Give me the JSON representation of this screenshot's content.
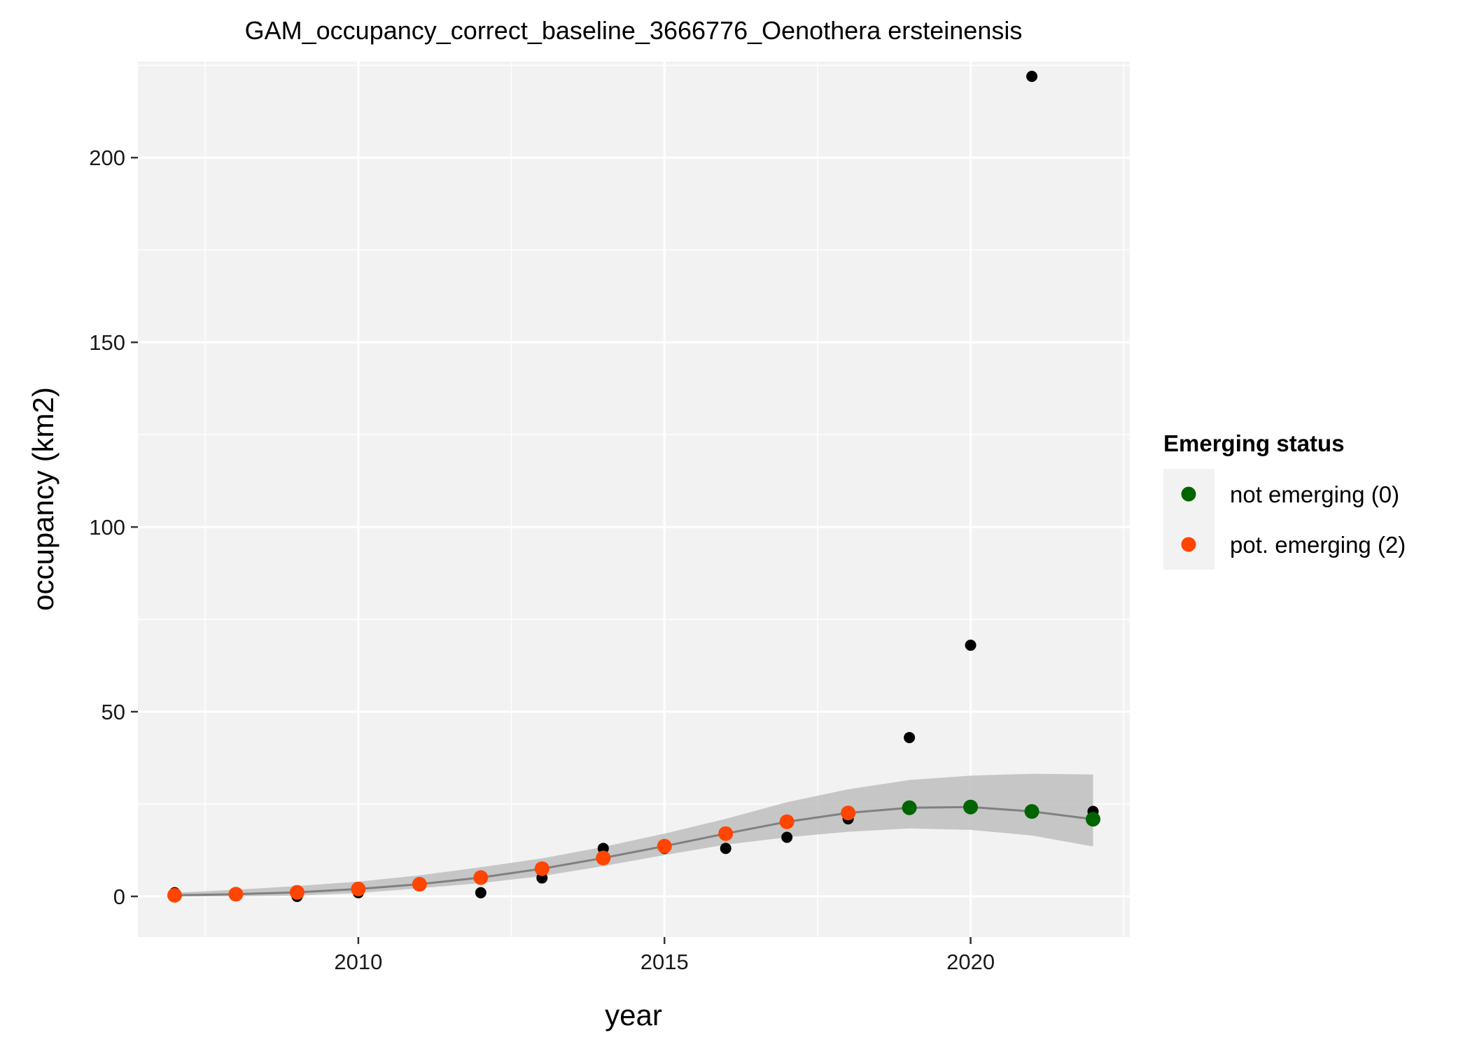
{
  "chart_data": {
    "type": "scatter",
    "title": "GAM_occupancy_correct_baseline_3666776_Oenothera ersteinensis",
    "xlabel": "year",
    "ylabel": "occupancy (km2)",
    "xlim": [
      2006.4,
      2022.6
    ],
    "ylim": [
      -11,
      226
    ],
    "xticks": [
      2010,
      2015,
      2020
    ],
    "xtick_labels": [
      "2010",
      "2015",
      "2020"
    ],
    "yticks": [
      0,
      50,
      100,
      150,
      200
    ],
    "ytick_labels": [
      "0",
      "50",
      "100",
      "150",
      "200"
    ],
    "grid": true,
    "legend": {
      "title": "Emerging status",
      "placement": "right",
      "entries": [
        {
          "label": "not emerging (0)",
          "color": "#006400"
        },
        {
          "label": "pot. emerging (2)",
          "color": "#ff4500"
        }
      ]
    },
    "observed": {
      "color": "#000000",
      "x": [
        2007,
        2008,
        2009,
        2010,
        2011,
        2012,
        2013,
        2014,
        2015,
        2016,
        2017,
        2018,
        2019,
        2020,
        2021,
        2022
      ],
      "y": [
        1,
        0.5,
        0,
        1,
        3,
        1,
        5,
        13,
        13,
        13,
        16,
        21,
        43,
        68,
        222,
        23
      ]
    },
    "fit": {
      "color": "#808080",
      "ribbon_color": "#bebebe",
      "x": [
        2007,
        2008,
        2009,
        2010,
        2011,
        2012,
        2013,
        2014,
        2015,
        2016,
        2017,
        2018,
        2019,
        2020,
        2021,
        2022
      ],
      "y": [
        0.3,
        0.6,
        1.1,
        2.0,
        3.3,
        5.1,
        7.5,
        10.4,
        13.6,
        17.0,
        20.2,
        22.6,
        24.0,
        24.2,
        23.0,
        20.9
      ],
      "lower": [
        0,
        0,
        0.2,
        0.9,
        2.2,
        3.6,
        5.5,
        8.2,
        11.2,
        14.0,
        16.0,
        17.5,
        18.4,
        18.0,
        16.5,
        13.5
      ],
      "upper": [
        1,
        1.8,
        2.8,
        4.0,
        5.7,
        7.9,
        10.3,
        13.4,
        17.0,
        21.0,
        25.5,
        29.0,
        31.5,
        32.7,
        33.2,
        33.0
      ],
      "status": [
        "pot. emerging (2)",
        "pot. emerging (2)",
        "pot. emerging (2)",
        "pot. emerging (2)",
        "pot. emerging (2)",
        "pot. emerging (2)",
        "pot. emerging (2)",
        "pot. emerging (2)",
        "pot. emerging (2)",
        "pot. emerging (2)",
        "pot. emerging (2)",
        "pot. emerging (2)",
        "not emerging (0)",
        "not emerging (0)",
        "not emerging (0)",
        "not emerging (0)"
      ]
    }
  }
}
